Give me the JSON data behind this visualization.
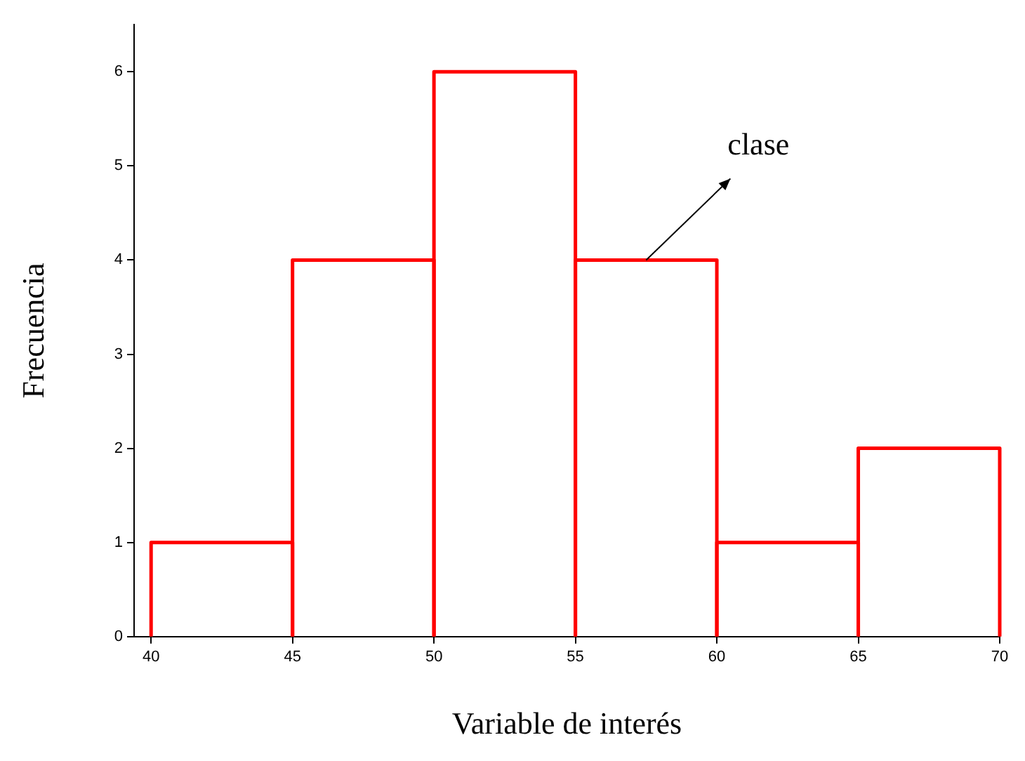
{
  "chart_data": {
    "type": "histogram",
    "xlabel": "Variable de interés",
    "ylabel": "Frecuencia",
    "bins": [
      40,
      45,
      50,
      55,
      60,
      65,
      70
    ],
    "values": [
      1,
      4,
      6,
      4,
      1,
      2
    ],
    "color": "#ff0000",
    "xlim": [
      39.4,
      70
    ],
    "xticks": [
      40,
      45,
      50,
      55,
      60,
      65,
      70
    ],
    "ylim": [
      0,
      6.5
    ],
    "yticks": [
      0,
      1,
      2,
      3,
      4,
      5,
      6
    ],
    "annotations": [
      {
        "text": "clase",
        "x": 57.5,
        "y": 4
      }
    ]
  }
}
